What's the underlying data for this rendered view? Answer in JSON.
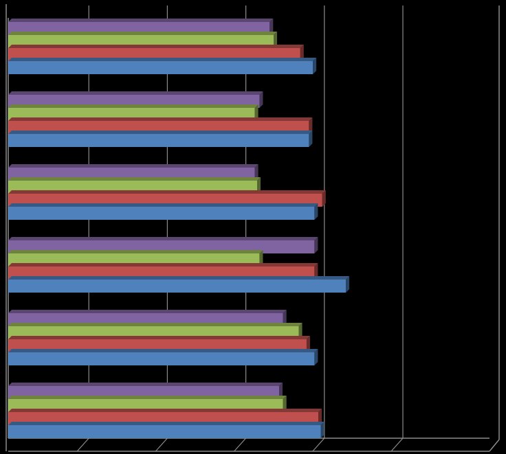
{
  "chart_data": {
    "type": "bar",
    "orientation": "horizontal",
    "style": "3d-clustered",
    "title": "",
    "xlabel": "",
    "ylabel": "",
    "xlim": [
      0,
      5
    ],
    "grid": true,
    "legend": "none",
    "categories": [
      "",
      "",
      "",
      "",
      "",
      ""
    ],
    "series": [
      {
        "color": "#4F81BD",
        "values": [
          3.98,
          3.9,
          4.3,
          3.9,
          3.83,
          3.88
        ]
      },
      {
        "color": "#C0504D",
        "values": [
          3.95,
          3.8,
          3.9,
          4.0,
          3.83,
          3.72
        ]
      },
      {
        "color": "#9BBB59",
        "values": [
          3.5,
          3.7,
          3.2,
          3.17,
          3.14,
          3.38
        ]
      },
      {
        "color": "#8064A2",
        "values": [
          3.45,
          3.5,
          3.9,
          3.14,
          3.2,
          3.33
        ]
      }
    ]
  }
}
